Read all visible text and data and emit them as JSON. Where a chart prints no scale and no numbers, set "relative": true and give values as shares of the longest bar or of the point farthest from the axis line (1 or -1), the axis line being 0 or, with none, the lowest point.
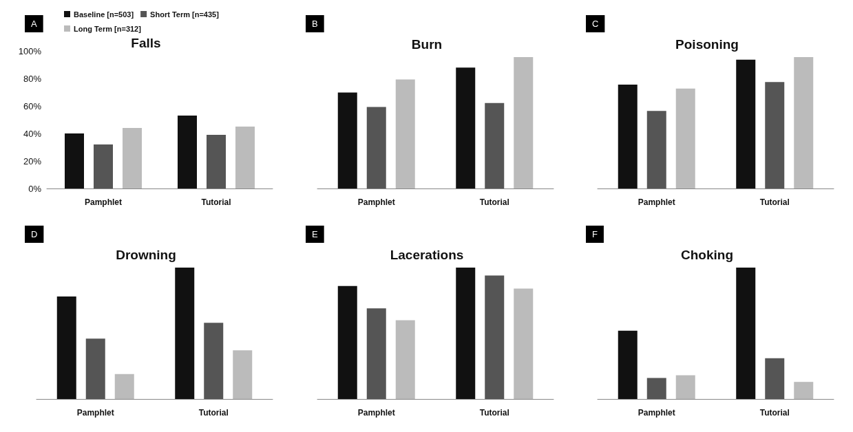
{
  "chart_data": [
    {
      "type": "bar",
      "title": "Falls",
      "annotations": [
        "A"
      ],
      "categories": [
        "Pamphlet",
        "Tutorial"
      ],
      "series": [
        {
          "name": "Baseline [n=503]",
          "color": "#111111",
          "values": [
            40,
            53
          ]
        },
        {
          "name": "Short Term [n=435]",
          "color": "#555555",
          "values": [
            32,
            39
          ]
        },
        {
          "name": "Long Term [n=312]",
          "color": "#bbbbbb",
          "values": [
            44,
            45
          ]
        }
      ],
      "ylim": [
        0,
        100
      ],
      "yticks": [
        {
          "value": 0,
          "label": "0%"
        },
        {
          "value": 20,
          "label": "20%"
        },
        {
          "value": 40,
          "label": "40%"
        },
        {
          "value": 60,
          "label": "60%"
        },
        {
          "value": 80,
          "label": "80%"
        },
        {
          "value": 100,
          "label": "100%"
        }
      ],
      "grid": false,
      "legend": "top"
    },
    {
      "type": "bar",
      "title": "Burn",
      "annotations": [
        "B"
      ],
      "categories": [
        "Pamphlet",
        "Tutorial"
      ],
      "relative": true,
      "series": [
        {
          "color": "#111111",
          "values": [
            0.73,
            0.92
          ]
        },
        {
          "color": "#555555",
          "values": [
            0.62,
            0.65
          ]
        },
        {
          "color": "#bbbbbb",
          "values": [
            0.83,
            1
          ]
        }
      ]
    },
    {
      "type": "bar",
      "title": "Poisoning",
      "annotations": [
        "C"
      ],
      "categories": [
        "Pamphlet",
        "Tutorial"
      ],
      "relative": true,
      "series": [
        {
          "color": "#111111",
          "values": [
            0.79,
            0.98
          ]
        },
        {
          "color": "#555555",
          "values": [
            0.59,
            0.81
          ]
        },
        {
          "color": "#bbbbbb",
          "values": [
            0.76,
            1
          ]
        }
      ]
    },
    {
      "type": "bar",
      "title": "Drowning",
      "annotations": [
        "D"
      ],
      "categories": [
        "Pamphlet",
        "Tutorial"
      ],
      "relative": true,
      "series": [
        {
          "color": "#111111",
          "values": [
            0.78,
            1
          ]
        },
        {
          "color": "#555555",
          "values": [
            0.46,
            0.58
          ]
        },
        {
          "color": "#bbbbbb",
          "values": [
            0.19,
            0.37
          ]
        }
      ]
    },
    {
      "type": "bar",
      "title": "Lacerations",
      "annotations": [
        "E"
      ],
      "categories": [
        "Pamphlet",
        "Tutorial"
      ],
      "relative": true,
      "series": [
        {
          "color": "#111111",
          "values": [
            0.86,
            1
          ]
        },
        {
          "color": "#555555",
          "values": [
            0.69,
            0.94
          ]
        },
        {
          "color": "#bbbbbb",
          "values": [
            0.6,
            0.84
          ]
        }
      ]
    },
    {
      "type": "bar",
      "title": "Choking",
      "annotations": [
        "F"
      ],
      "categories": [
        "Pamphlet",
        "Tutorial"
      ],
      "relative": true,
      "series": [
        {
          "color": "#111111",
          "values": [
            0.52,
            1
          ]
        },
        {
          "color": "#555555",
          "values": [
            0.16,
            0.31
          ]
        },
        {
          "color": "#bbbbbb",
          "values": [
            0.18,
            0.13
          ]
        }
      ]
    }
  ]
}
